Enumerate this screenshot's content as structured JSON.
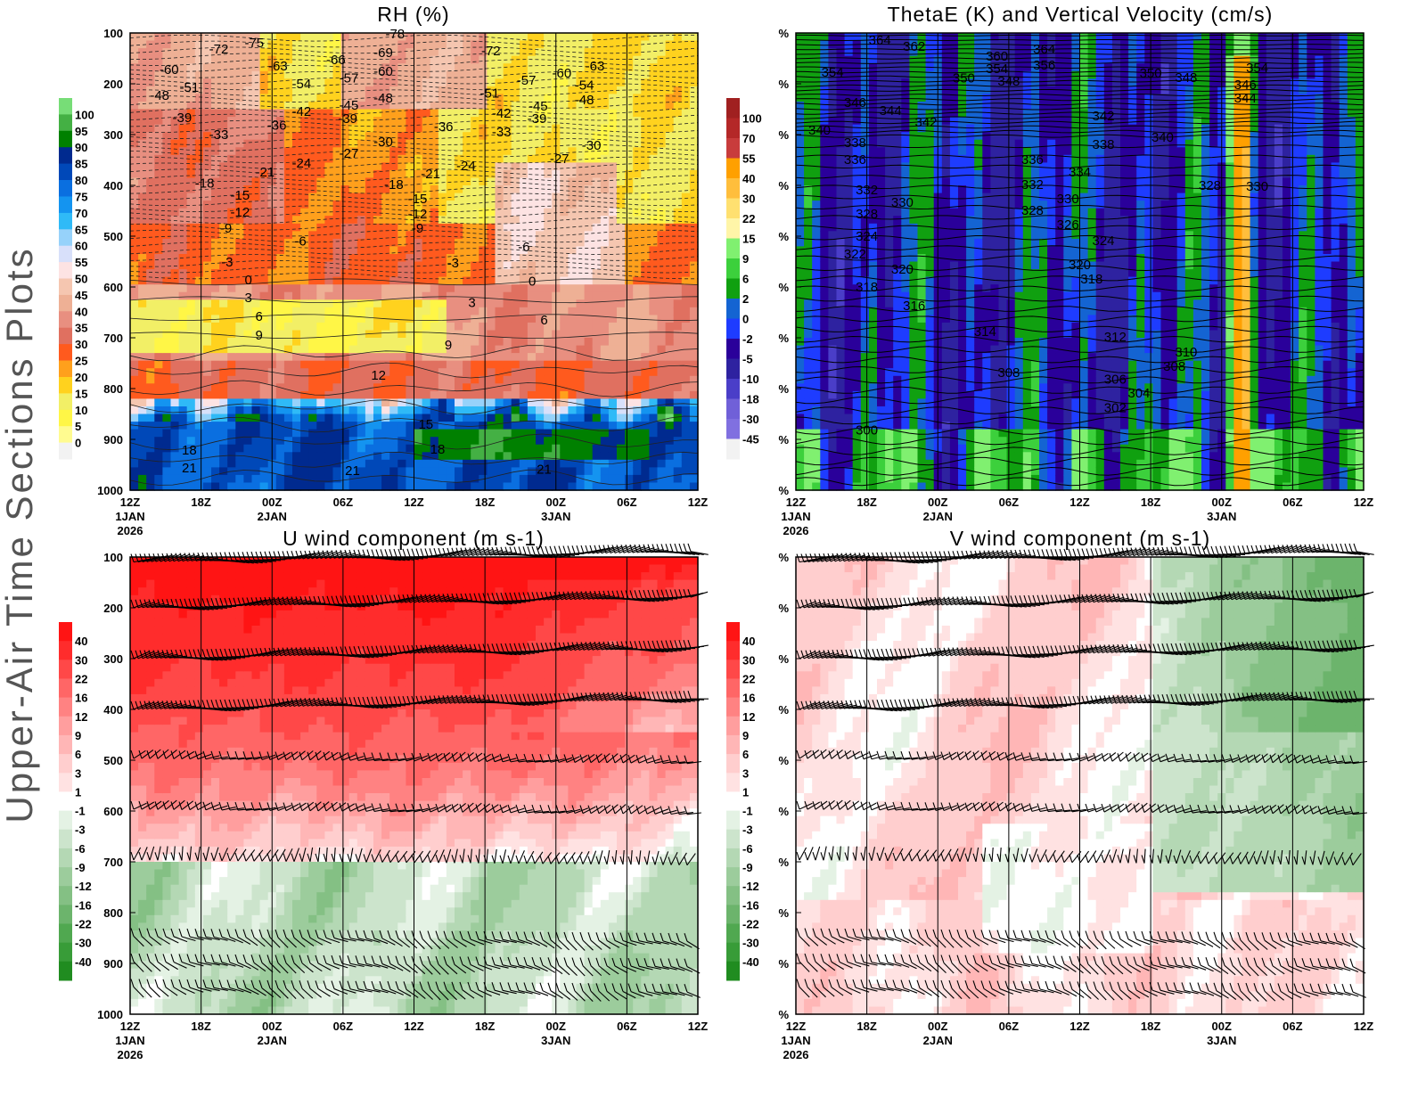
{
  "page_label": "Upper-Air Time Sections Plots",
  "chart_data": [
    {
      "type": "heatmap",
      "title": "RH (%)",
      "x_ticks": [
        "12Z",
        "18Z",
        "00Z",
        "06Z",
        "12Z",
        "18Z",
        "00Z",
        "06Z",
        "12Z"
      ],
      "x_subticks": [
        [
          "1JAN",
          "2026"
        ],
        [],
        [
          "2JAN"
        ],
        [],
        [],
        [],
        [
          "3JAN"
        ],
        [],
        []
      ],
      "y_ticks": [
        "100",
        "200",
        "300",
        "400",
        "500",
        "600",
        "700",
        "800",
        "900",
        "1000"
      ],
      "y_range": [
        100,
        1000
      ],
      "x_range_hours": [
        0,
        48
      ],
      "colorbar": {
        "levels": [
          "100",
          "95",
          "90",
          "85",
          "80",
          "75",
          "70",
          "65",
          "60",
          "55",
          "50",
          "45",
          "40",
          "35",
          "30",
          "25",
          "20",
          "15",
          "10",
          "5",
          "0"
        ],
        "colors": [
          "#77dd77",
          "#44b044",
          "#008000",
          "#002a8f",
          "#0048b8",
          "#0a6fe0",
          "#1494f0",
          "#2fbaf7",
          "#96d2fa",
          "#d8e0fa",
          "#fde3e3",
          "#f5c6b0",
          "#eeb095",
          "#e88f80",
          "#e07060",
          "#ff5a1e",
          "#ffa01c",
          "#ffd21e",
          "#f2ef66",
          "#fff646",
          "#fffb90",
          "#f2f2f2"
        ]
      },
      "contour_labels": [
        [
          22.4,
          102,
          "-78"
        ],
        [
          7.5,
          132,
          "-72"
        ],
        [
          10.5,
          119,
          "-75"
        ],
        [
          30.5,
          135,
          "-72"
        ],
        [
          3.3,
          172,
          "-60"
        ],
        [
          12.5,
          165,
          "-63"
        ],
        [
          17.4,
          153,
          "-66"
        ],
        [
          21.4,
          139,
          "-69"
        ],
        [
          2.5,
          223,
          "-48"
        ],
        [
          5,
          207,
          "-51"
        ],
        [
          14.5,
          200,
          "-54"
        ],
        [
          18.5,
          189,
          "-57"
        ],
        [
          21.4,
          175,
          "-60"
        ],
        [
          30.4,
          218,
          "-51"
        ],
        [
          33.5,
          193,
          "-57"
        ],
        [
          36.5,
          179,
          "-60"
        ],
        [
          39.3,
          165,
          "-63"
        ],
        [
          38.4,
          203,
          "-54"
        ],
        [
          38.4,
          232,
          "-48"
        ],
        [
          4.4,
          267,
          "-39"
        ],
        [
          14.5,
          254,
          "-42"
        ],
        [
          18.5,
          242,
          "-45"
        ],
        [
          18.4,
          268,
          "-39"
        ],
        [
          21.4,
          228,
          "-48"
        ],
        [
          31.4,
          258,
          "-42"
        ],
        [
          34.5,
          244,
          "-45"
        ],
        [
          34.4,
          268,
          "-39"
        ],
        [
          7.5,
          300,
          "-33"
        ],
        [
          12.4,
          282,
          "-36"
        ],
        [
          26.5,
          284,
          "-36"
        ],
        [
          31.4,
          295,
          "-33"
        ],
        [
          21.4,
          314,
          "-30"
        ],
        [
          39,
          321,
          "-30"
        ],
        [
          18.5,
          337,
          "-27"
        ],
        [
          14.5,
          356,
          "-24"
        ],
        [
          11.4,
          374,
          "-21"
        ],
        [
          25.4,
          377,
          "-21"
        ],
        [
          28.4,
          361,
          "-24"
        ],
        [
          36.3,
          347,
          "-27"
        ],
        [
          6.3,
          396,
          "-18"
        ],
        [
          9.3,
          419,
          "-15"
        ],
        [
          9.3,
          453,
          "-12"
        ],
        [
          22.3,
          398,
          "-18"
        ],
        [
          24.3,
          426,
          "-15"
        ],
        [
          24.3,
          456,
          "-12"
        ],
        [
          24.3,
          484,
          "-9"
        ],
        [
          8.1,
          484,
          "-9"
        ],
        [
          14.4,
          510,
          "-6"
        ],
        [
          33.3,
          521,
          "-6"
        ],
        [
          8.2,
          551,
          "-3"
        ],
        [
          27.3,
          553,
          "-3"
        ],
        [
          10,
          586,
          "0"
        ],
        [
          34,
          589,
          "0"
        ],
        [
          10,
          621,
          "3"
        ],
        [
          28.9,
          631,
          "3"
        ],
        [
          10.9,
          658,
          "6"
        ],
        [
          35,
          665,
          "6"
        ],
        [
          10.9,
          695,
          "9"
        ],
        [
          26.9,
          714,
          "9"
        ],
        [
          21,
          774,
          "12"
        ],
        [
          25,
          870,
          "15"
        ],
        [
          5,
          921,
          "18"
        ],
        [
          26,
          919,
          "18"
        ],
        [
          5,
          956,
          "21"
        ],
        [
          18.8,
          961,
          "21"
        ],
        [
          35,
          959,
          "21"
        ]
      ]
    },
    {
      "type": "heatmap",
      "title": "ThetaE (K) and Vertical Velocity (cm/s)",
      "x_ticks": [
        "12Z",
        "18Z",
        "00Z",
        "06Z",
        "12Z",
        "18Z",
        "00Z",
        "06Z",
        "12Z"
      ],
      "x_subticks": [
        [
          "1JAN",
          "2026"
        ],
        [],
        [
          "2JAN"
        ],
        [],
        [],
        [],
        [
          "3JAN"
        ],
        [],
        []
      ],
      "y_ticks": [
        "%",
        "%",
        "%",
        "%",
        "%",
        "%",
        "%",
        "%",
        "%",
        "%"
      ],
      "y_range": [
        100,
        1000
      ],
      "x_range_hours": [
        0,
        48
      ],
      "colorbar": {
        "levels": [
          "100",
          "70",
          "55",
          "40",
          "30",
          "22",
          "15",
          "9",
          "6",
          "2",
          "0",
          "-2",
          "-5",
          "-10",
          "-18",
          "-30",
          "-45"
        ],
        "colors": [
          "#a02020",
          "#b42828",
          "#c83c3c",
          "#ffa000",
          "#ffbe3c",
          "#ffe070",
          "#fff5a8",
          "#80f070",
          "#3cd03c",
          "#10a010",
          "#1464d2",
          "#1e3cff",
          "#2a009a",
          "#2e22a0",
          "#4a3ec8",
          "#7060d8",
          "#8070e0",
          "#f2f2f2"
        ]
      },
      "contour_labels": [
        [
          7.1,
          114,
          "364"
        ],
        [
          10,
          126,
          "362"
        ],
        [
          17,
          146,
          "360"
        ],
        [
          21,
          132,
          "364"
        ],
        [
          17,
          170,
          "354"
        ],
        [
          21,
          163,
          "356"
        ],
        [
          14.2,
          189,
          "350"
        ],
        [
          18,
          195,
          "348"
        ],
        [
          30,
          179,
          "350"
        ],
        [
          33,
          188,
          "348"
        ],
        [
          39,
          168,
          "354"
        ],
        [
          38,
          202,
          "346"
        ],
        [
          38,
          228,
          "344"
        ],
        [
          3.1,
          177,
          "354"
        ],
        [
          5,
          237,
          "346"
        ],
        [
          8,
          253,
          "344"
        ],
        [
          11,
          275,
          "342"
        ],
        [
          26,
          263,
          "342"
        ],
        [
          2,
          291,
          "340"
        ],
        [
          5,
          316,
          "338"
        ],
        [
          5,
          349,
          "336"
        ],
        [
          26,
          319,
          "338"
        ],
        [
          20,
          349,
          "336"
        ],
        [
          24,
          374,
          "334"
        ],
        [
          31,
          305,
          "340"
        ],
        [
          6,
          409,
          "332"
        ],
        [
          9,
          433,
          "330"
        ],
        [
          20,
          398,
          "332"
        ],
        [
          23,
          426,
          "330"
        ],
        [
          6,
          456,
          "328"
        ],
        [
          20,
          449,
          "328"
        ],
        [
          23,
          477,
          "326"
        ],
        [
          26,
          509,
          "324"
        ],
        [
          35,
          400,
          "328"
        ],
        [
          39,
          402,
          "330"
        ],
        [
          6,
          500,
          "324"
        ],
        [
          5,
          535,
          "322"
        ],
        [
          9,
          565,
          "320"
        ],
        [
          24,
          556,
          "320"
        ],
        [
          25,
          584,
          "318"
        ],
        [
          6,
          600,
          "318"
        ],
        [
          10,
          637,
          "316"
        ],
        [
          16,
          688,
          "314"
        ],
        [
          27,
          698,
          "312"
        ],
        [
          33,
          728,
          "310"
        ],
        [
          32,
          756,
          "308"
        ],
        [
          18,
          768,
          "308"
        ],
        [
          27,
          782,
          "306"
        ],
        [
          29,
          809,
          "304"
        ],
        [
          27,
          838,
          "302"
        ],
        [
          6,
          882,
          "300"
        ]
      ]
    },
    {
      "type": "heatmap",
      "title": "U wind component (m s-1)",
      "x_ticks": [
        "12Z",
        "18Z",
        "00Z",
        "06Z",
        "12Z",
        "18Z",
        "00Z",
        "06Z",
        "12Z"
      ],
      "x_subticks": [
        [
          "1JAN",
          "2026"
        ],
        [],
        [
          "2JAN"
        ],
        [],
        [],
        [],
        [
          "3JAN"
        ],
        [],
        []
      ],
      "y_ticks": [
        "100",
        "200",
        "300",
        "400",
        "500",
        "600",
        "700",
        "800",
        "900",
        "1000"
      ],
      "y_range": [
        100,
        1000
      ],
      "x_range_hours": [
        0,
        48
      ],
      "colorbar": {
        "levels": [
          "40",
          "30",
          "22",
          "16",
          "12",
          "9",
          "6",
          "3",
          "1",
          "-1",
          "-3",
          "-6",
          "-9",
          "-12",
          "-16",
          "-22",
          "-30",
          "-40"
        ],
        "colors": [
          "#ff1414",
          "#ff2c2c",
          "#ff4848",
          "#ff6666",
          "#ff8282",
          "#ff9e9e",
          "#ffb6b6",
          "#ffcece",
          "#ffe2e2",
          "#ffffff",
          "#e4f2e4",
          "#cce4cc",
          "#b4d8b4",
          "#9ccc9c",
          "#84c084",
          "#6cb46c",
          "#50a850",
          "#389c38",
          "#208c20"
        ]
      },
      "contour_labels": []
    },
    {
      "type": "heatmap",
      "title": "V wind component (m s-1)",
      "x_ticks": [
        "12Z",
        "18Z",
        "00Z",
        "06Z",
        "12Z",
        "18Z",
        "00Z",
        "06Z",
        "12Z"
      ],
      "x_subticks": [
        [
          "1JAN",
          "2026"
        ],
        [],
        [
          "2JAN"
        ],
        [],
        [],
        [],
        [
          "3JAN"
        ],
        [],
        []
      ],
      "y_ticks": [
        "%",
        "%",
        "%",
        "%",
        "%",
        "%",
        "%",
        "%",
        "%",
        "%"
      ],
      "y_range": [
        100,
        1000
      ],
      "x_range_hours": [
        0,
        48
      ],
      "colorbar": {
        "levels": [
          "40",
          "30",
          "22",
          "16",
          "12",
          "9",
          "6",
          "3",
          "1",
          "-1",
          "-3",
          "-6",
          "-9",
          "-12",
          "-16",
          "-22",
          "-30",
          "-40"
        ],
        "colors": [
          "#ff1414",
          "#ff2c2c",
          "#ff4848",
          "#ff6666",
          "#ff8282",
          "#ff9e9e",
          "#ffb6b6",
          "#ffcece",
          "#ffe2e2",
          "#ffffff",
          "#e4f2e4",
          "#cce4cc",
          "#b4d8b4",
          "#9ccc9c",
          "#84c084",
          "#6cb46c",
          "#50a850",
          "#389c38",
          "#208c20"
        ]
      },
      "contour_labels": []
    }
  ]
}
